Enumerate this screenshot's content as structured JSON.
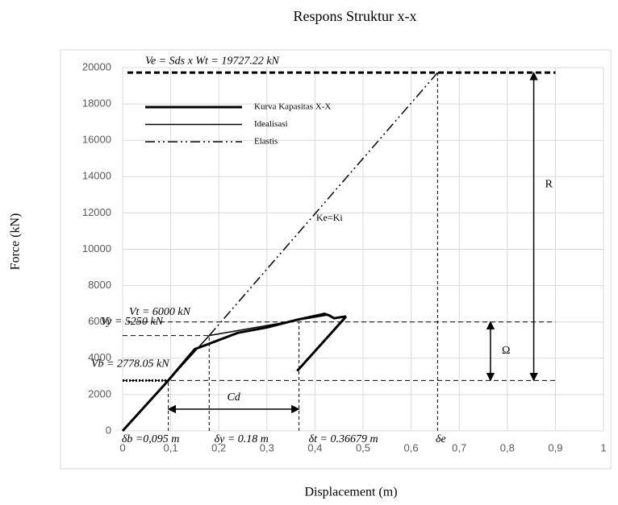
{
  "chart_data": {
    "type": "line",
    "title": "Respons Struktur x-x",
    "xlabel": "Displacement (m)",
    "ylabel": "Force (kN)",
    "xlim": [
      0,
      1
    ],
    "ylim": [
      0,
      20000
    ],
    "xticks": [
      0,
      {
        "value": 0.1,
        "label": "0,1"
      },
      {
        "value": 0.2,
        "label": "0,2"
      },
      {
        "value": 0.3,
        "label": "0,3"
      },
      {
        "value": 0.4,
        "label": "0,4"
      },
      {
        "value": 0.5,
        "label": "0,5"
      },
      {
        "value": 0.6,
        "label": "0,6"
      },
      {
        "value": 0.7,
        "label": "0,7"
      },
      {
        "value": 0.8,
        "label": "0,8"
      },
      {
        "value": 0.9,
        "label": "0,9"
      },
      1
    ],
    "yticks": [
      0,
      2000,
      4000,
      6000,
      8000,
      10000,
      12000,
      14000,
      16000,
      18000,
      20000
    ],
    "grid": true,
    "legend": "upper left",
    "series": [
      {
        "name": "Kurva Kapasitas X-X",
        "color": "#000000",
        "style": "solid",
        "width": 3,
        "x": [
          0,
          0.095,
          0.15,
          0.24,
          0.3,
          0.36,
          0.42,
          0.43,
          0.44,
          0.45,
          0.465,
          null,
          0.363,
          0.465
        ],
        "values": [
          0,
          2778.05,
          4500,
          5400,
          5700,
          6100,
          6450,
          6350,
          6200,
          6250,
          6300,
          null,
          3300,
          6300
        ]
      },
      {
        "name": "Idealisasi",
        "color": "#000000",
        "style": "solid",
        "width": 1.5,
        "x": [
          0,
          0.18,
          0.43
        ],
        "values": [
          0,
          5250,
          6400
        ]
      },
      {
        "name": "Elastis",
        "color": "#000000",
        "style": "dashdot",
        "width": 1.5,
        "x": [
          0.18,
          0.655
        ],
        "values": [
          5250,
          19727.22
        ]
      }
    ],
    "hlines": [
      {
        "label": "Ve = Sds x Wt = 19727.22 kN",
        "y": 19727.22,
        "x": [
          0.01,
          0.9
        ],
        "style": "thickdash"
      },
      {
        "label": "Vt = 6000 kN",
        "y": 6000,
        "x": [
          0.01,
          0.9
        ],
        "style": "dash"
      },
      {
        "label": "Vy = 5250 kN",
        "y": 5250,
        "x": [
          0,
          0.18
        ],
        "style": "dash"
      },
      {
        "label": "Vb = 2778.05 kN",
        "y": 2778.05,
        "x": [
          0,
          0.9
        ],
        "style": "dash"
      }
    ],
    "vlines": [
      {
        "label": "δb =0,095 m",
        "x": 0.095,
        "y": 2778.05
      },
      {
        "label": "δy = 0.18 m",
        "x": 0.18,
        "y": 5250
      },
      {
        "label": "δt = 0.36679 m",
        "x": 0.36679,
        "y": 6000
      },
      {
        "label": "δe",
        "x": 0.655,
        "y": 19727.22
      }
    ],
    "arrows": [
      {
        "label": "R",
        "x": 0.855,
        "from": 2778.05,
        "to": 19727.22
      },
      {
        "label": "Ω",
        "x": 0.765,
        "from": 2778.05,
        "to": 6000
      }
    ],
    "harrow": {
      "label": "Cd",
      "y": 1200,
      "from": 0.095,
      "to": 0.36679
    },
    "annotation": {
      "text": "Ke=Ki",
      "x": 0.43,
      "y": 11700
    }
  }
}
